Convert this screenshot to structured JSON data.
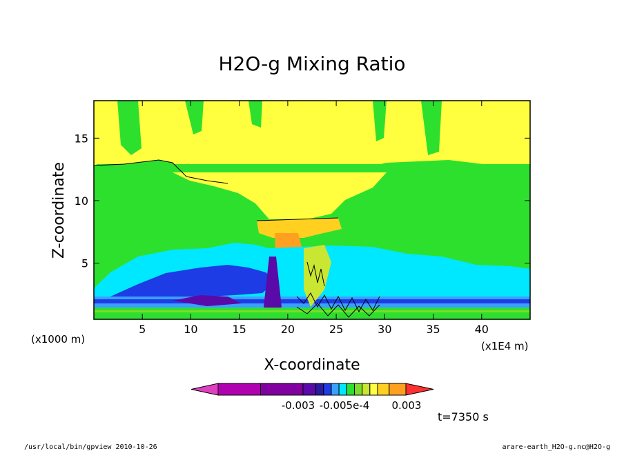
{
  "chart_data": {
    "type": "heatmap",
    "title": "H2O-g Mixing Ratio",
    "xlabel": "X-coordinate",
    "ylabel": "Z-coordinate",
    "x_unit_left": "(x1000 m)",
    "x_unit_right": "(x1E4 m)",
    "x_ticks": [
      5,
      10,
      15,
      20,
      25,
      30,
      35,
      40
    ],
    "y_ticks": [
      5,
      10,
      15
    ],
    "xlim": [
      0,
      45
    ],
    "ylim": [
      0.5,
      18
    ],
    "colorbar": {
      "colors": [
        "#e040c0",
        "#b000b0",
        "#8000a0",
        "#5a0aa8",
        "#2a1aa0",
        "#1e3ce6",
        "#3aa0ff",
        "#00e8ff",
        "#2ee02e",
        "#7ddb2e",
        "#c8e632",
        "#ffff40",
        "#ffd020",
        "#ffa020",
        "#ff3030"
      ],
      "labels": [
        "-0.003",
        "-0.005e-4",
        "0.003"
      ]
    },
    "time_label": "t=7350 s"
  },
  "footer": {
    "left": "/usr/local/bin/gpview  2010-10-26",
    "right": "arare-earth_H2O-g.nc@H2O-g"
  }
}
